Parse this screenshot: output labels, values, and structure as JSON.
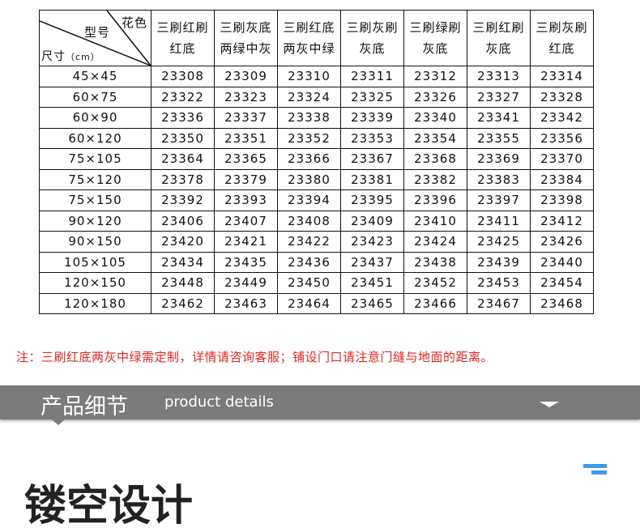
{
  "table": {
    "corner": {
      "color_label": "花色",
      "model_label": "型号",
      "size_label": "尺寸",
      "unit": "（cm）"
    },
    "columns": [
      [
        "三刷红刷",
        "红底"
      ],
      [
        "三刷灰底",
        "两绿中灰"
      ],
      [
        "三刷红底",
        "两灰中绿"
      ],
      [
        "三刷灰刷",
        "灰底"
      ],
      [
        "三刷绿刷",
        "灰底"
      ],
      [
        "三刷红刷",
        "灰底"
      ],
      [
        "三刷灰刷",
        "红底"
      ]
    ],
    "rows": [
      {
        "size": "45×45",
        "codes": [
          "23308",
          "23309",
          "23310",
          "23311",
          "23312",
          "23313",
          "23314"
        ]
      },
      {
        "size": "60×75",
        "codes": [
          "23322",
          "23323",
          "23324",
          "23325",
          "23326",
          "23327",
          "23328"
        ]
      },
      {
        "size": "60×90",
        "codes": [
          "23336",
          "23337",
          "23338",
          "23339",
          "23340",
          "23341",
          "23342"
        ]
      },
      {
        "size": "60×120",
        "codes": [
          "23350",
          "23351",
          "23352",
          "23353",
          "23354",
          "23355",
          "23356"
        ]
      },
      {
        "size": "75×105",
        "codes": [
          "23364",
          "23365",
          "23366",
          "23367",
          "23368",
          "23369",
          "23370"
        ]
      },
      {
        "size": "75×120",
        "codes": [
          "23378",
          "23379",
          "23380",
          "23381",
          "23382",
          "23383",
          "23384"
        ]
      },
      {
        "size": "75×150",
        "codes": [
          "23392",
          "23393",
          "23394",
          "23395",
          "23396",
          "23397",
          "23398"
        ]
      },
      {
        "size": "90×120",
        "codes": [
          "23406",
          "23407",
          "23408",
          "23409",
          "23410",
          "23411",
          "23412"
        ]
      },
      {
        "size": "90×150",
        "codes": [
          "23420",
          "23421",
          "23422",
          "23423",
          "23424",
          "23425",
          "23426"
        ]
      },
      {
        "size": "105×105",
        "codes": [
          "23434",
          "23435",
          "23436",
          "23437",
          "23438",
          "23439",
          "23440"
        ]
      },
      {
        "size": "120×150",
        "codes": [
          "23448",
          "23449",
          "23450",
          "23451",
          "23452",
          "23453",
          "23454"
        ]
      },
      {
        "size": "120×180",
        "codes": [
          "23462",
          "23463",
          "23464",
          "23465",
          "23466",
          "23467",
          "23468"
        ]
      }
    ]
  },
  "note": "注：三刷红底两灰中绿需定制，详情请咨询客服；铺设门口请注意门缝与地面的距离。",
  "banner": {
    "title": "产品细节",
    "subtitle": "product details",
    "icon": "caret-down-icon"
  },
  "section_title": "镂空设计",
  "colors": {
    "note": "#e8231d",
    "banner": "#7b7b7b",
    "accent": "#3d9be9"
  }
}
